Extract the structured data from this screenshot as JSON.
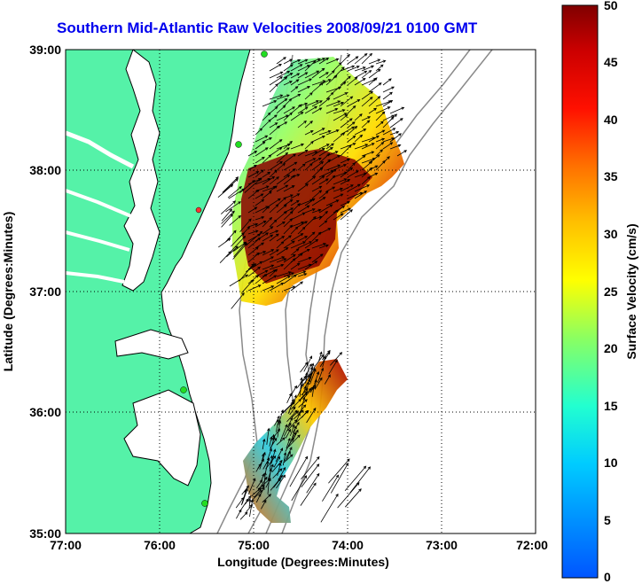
{
  "title": "Southern Mid-Atlantic Raw Velocities 2008/09/21 0100 GMT",
  "map": {
    "xlabel": "Longitude (Degrees:Minutes)",
    "ylabel": "Latitude (Degrees:Minutes)",
    "x_ticks": [
      "77:00",
      "76:00",
      "75:00",
      "74:00",
      "73:00",
      "72:00"
    ],
    "y_ticks": [
      "39:00",
      "38:00",
      "37:00",
      "36:00",
      "35:00"
    ],
    "lon_range": [
      -77,
      -72
    ],
    "lat_range": [
      35,
      39
    ],
    "colors": {
      "land": "#55f2a8",
      "coast": "#000000",
      "isobath": "#8a8a8a",
      "site": "#22dd22"
    }
  },
  "colorbar": {
    "label": "Surface Velocity (cm/s)",
    "ticks": [
      "0",
      "5",
      "10",
      "15",
      "20",
      "25",
      "30",
      "35",
      "40",
      "45",
      "50"
    ],
    "range": [
      0,
      50
    ]
  }
}
